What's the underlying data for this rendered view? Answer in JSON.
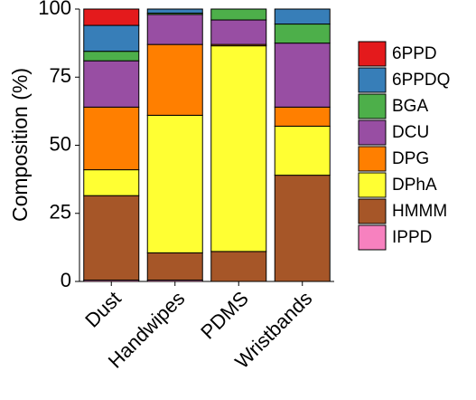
{
  "chart_data": {
    "type": "stacked_bar",
    "ylabel": "Composition (%)",
    "categories": [
      "Dust",
      "Handwipes",
      "PDMS",
      "Wristbands"
    ],
    "series": [
      {
        "name": "6PPD",
        "color": "#e41a1c",
        "values": [
          6,
          0,
          0,
          0
        ]
      },
      {
        "name": "6PPDQ",
        "color": "#377eb8",
        "values": [
          9.5,
          1.5,
          0,
          5.5
        ]
      },
      {
        "name": "BGA",
        "color": "#4daf4a",
        "values": [
          3.5,
          0.5,
          4,
          7
        ]
      },
      {
        "name": "DCU",
        "color": "#984ea3",
        "values": [
          17,
          11,
          9,
          23.5
        ]
      },
      {
        "name": "DPG",
        "color": "#ff7f00",
        "values": [
          23,
          26,
          0.5,
          7
        ]
      },
      {
        "name": "DPhA",
        "color": "#ffff33",
        "values": [
          9.5,
          50.5,
          75.5,
          18
        ]
      },
      {
        "name": "HMMM",
        "color": "#a65628",
        "values": [
          31,
          10,
          11,
          39
        ]
      },
      {
        "name": "IPPD",
        "color": "#f781bf",
        "values": [
          0.5,
          0.5,
          0,
          0
        ]
      }
    ],
    "ylim": [
      0,
      100
    ],
    "yticks": [
      0,
      25,
      50,
      75,
      100
    ]
  }
}
